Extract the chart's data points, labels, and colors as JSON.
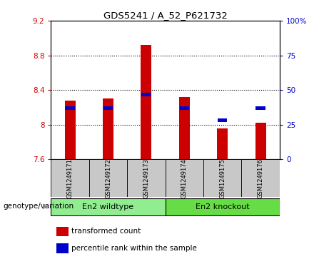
{
  "title": "GDS5241 / A_52_P621732",
  "categories": [
    "GSM1249171",
    "GSM1249172",
    "GSM1249173",
    "GSM1249174",
    "GSM1249175",
    "GSM1249176"
  ],
  "red_values": [
    8.28,
    8.3,
    8.92,
    8.32,
    7.96,
    8.02
  ],
  "blue_values": [
    8.19,
    8.19,
    8.35,
    8.19,
    8.05,
    8.19
  ],
  "ymin": 7.6,
  "ymax": 9.2,
  "yticks": [
    7.6,
    8.0,
    8.4,
    8.8,
    9.2
  ],
  "ytick_labels": [
    "7.6",
    "8",
    "8.4",
    "8.8",
    "9.2"
  ],
  "y2min": 0,
  "y2max": 100,
  "y2ticks": [
    0,
    25,
    50,
    75,
    100
  ],
  "y2tick_labels": [
    "0",
    "25",
    "50",
    "75",
    "100%"
  ],
  "bar_base": 7.6,
  "group1_label": "En2 wildtype",
  "group2_label": "En2 knockout",
  "group1_color": "#90EE90",
  "group2_color": "#66DD44",
  "genotype_label": "genotype/variation",
  "legend1": "transformed count",
  "legend2": "percentile rank within the sample",
  "red_color": "#CC0000",
  "blue_color": "#0000CC",
  "bar_width": 0.28,
  "tick_bg_color": "#C8C8C8",
  "left_axis_color": "#CC0000",
  "right_axis_color": "#0000CC"
}
